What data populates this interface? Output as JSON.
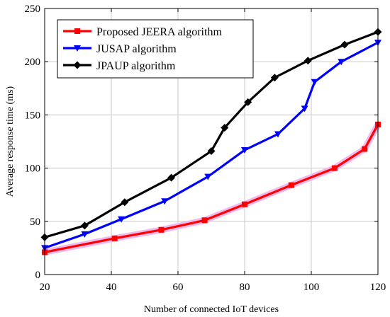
{
  "chart_data": {
    "type": "line",
    "xlabel": "Number of connected IoT devices",
    "ylabel": "Average response time (ms)",
    "xlim": [
      20,
      120
    ],
    "ylim": [
      0,
      250
    ],
    "xticks": [
      20,
      40,
      60,
      80,
      100,
      120
    ],
    "yticks": [
      0,
      50,
      100,
      150,
      200,
      250
    ],
    "grid": true,
    "legend_position": "top-left",
    "series": [
      {
        "name": "Proposed JEERA algorithm",
        "color": "#ff0000",
        "marker": "square",
        "x": [
          20,
          41,
          55,
          68,
          80,
          94,
          107,
          116,
          120
        ],
        "y": [
          21,
          34,
          42,
          51,
          66,
          84,
          100,
          118,
          141
        ]
      },
      {
        "name": "JUSAP algorithm",
        "color": "#0000ff",
        "marker": "triangle-down",
        "x": [
          20,
          32,
          43,
          56,
          69,
          80,
          90,
          98,
          101,
          109,
          120
        ],
        "y": [
          25,
          38,
          52,
          69,
          92,
          117,
          132,
          156,
          181,
          200,
          218
        ]
      },
      {
        "name": "JPAUP algorithm",
        "color": "#000000",
        "marker": "diamond",
        "x": [
          20,
          32,
          44,
          58,
          70,
          74,
          81,
          89,
          99,
          110,
          120
        ],
        "y": [
          35,
          46,
          68,
          91,
          116,
          138,
          162,
          185,
          201,
          216,
          228
        ]
      }
    ]
  }
}
